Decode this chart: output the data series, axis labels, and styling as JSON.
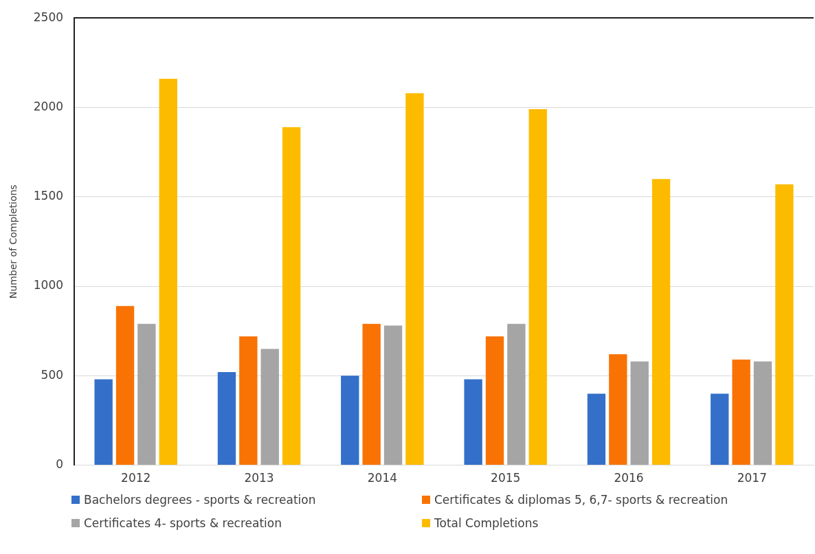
{
  "chart_data": {
    "type": "bar",
    "ylabel": "Number of Completions",
    "categories": [
      "2012",
      "2013",
      "2014",
      "2015",
      "2016",
      "2017"
    ],
    "series": [
      {
        "name": "Bachelors degrees - sports & recreation",
        "color": "#3470c9",
        "values": [
          480,
          520,
          500,
          480,
          400,
          400
        ]
      },
      {
        "name": "Certificates & diplomas 5, 6,7- sports & recreation",
        "color": "#f97304",
        "values": [
          890,
          720,
          790,
          720,
          620,
          590
        ]
      },
      {
        "name": "Certificates 4- sports & recreation",
        "color": "#a5a5a5",
        "values": [
          790,
          650,
          780,
          790,
          580,
          580
        ]
      },
      {
        "name": "Total Completions",
        "color": "#fdbb00",
        "values": [
          2160,
          1890,
          2080,
          1990,
          1600,
          1570
        ]
      }
    ],
    "ylim": [
      0,
      2500
    ],
    "yticks": [
      0,
      500,
      1000,
      1500,
      2000,
      2500
    ],
    "grid": "y",
    "legend": "bottom"
  }
}
